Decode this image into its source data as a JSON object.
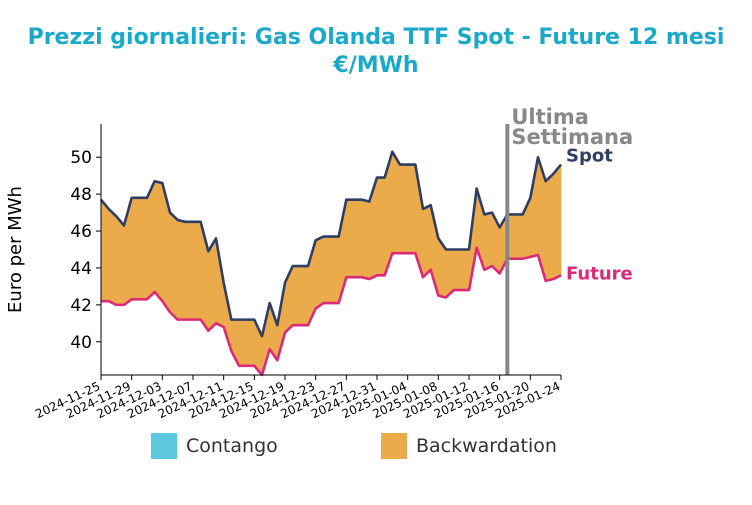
{
  "chart_data": {
    "type": "area",
    "title": "Prezzi giornalieri: Gas Olanda TTF Spot - Future 12 mesi",
    "subtitle": "€/MWh",
    "ylabel": "Euro per MWh",
    "xlabel": "",
    "ylim": [
      38.2,
      51.8
    ],
    "yticks": [
      40,
      42,
      44,
      46,
      48,
      50
    ],
    "xlim": [
      "2024-11-25",
      "2025-01-24"
    ],
    "xticks": [
      "2024-11-25",
      "2024-11-29",
      "2024-12-03",
      "2024-12-07",
      "2024-12-11",
      "2024-12-15",
      "2024-12-19",
      "2024-12-23",
      "2024-12-27",
      "2024-12-31",
      "2025-01-04",
      "2025-01-08",
      "2025-01-12",
      "2025-01-16",
      "2025-01-20",
      "2025-01-24"
    ],
    "grid": false,
    "series": [
      {
        "name": "Spot",
        "color": "#2f3e63",
        "x": [
          "2024-11-25",
          "2024-11-26",
          "2024-11-27",
          "2024-11-28",
          "2024-11-29",
          "2024-11-30",
          "2024-12-01",
          "2024-12-02",
          "2024-12-03",
          "2024-12-04",
          "2024-12-05",
          "2024-12-06",
          "2024-12-07",
          "2024-12-08",
          "2024-12-09",
          "2024-12-10",
          "2024-12-11",
          "2024-12-12",
          "2024-12-13",
          "2024-12-14",
          "2024-12-15",
          "2024-12-16",
          "2024-12-17",
          "2024-12-18",
          "2024-12-19",
          "2024-12-20",
          "2024-12-21",
          "2024-12-22",
          "2024-12-23",
          "2024-12-24",
          "2024-12-25",
          "2024-12-26",
          "2024-12-27",
          "2024-12-28",
          "2024-12-29",
          "2024-12-30",
          "2024-12-31",
          "2025-01-01",
          "2025-01-02",
          "2025-01-03",
          "2025-01-04",
          "2025-01-05",
          "2025-01-06",
          "2025-01-07",
          "2025-01-08",
          "2025-01-09",
          "2025-01-10",
          "2025-01-11",
          "2025-01-12",
          "2025-01-13",
          "2025-01-14",
          "2025-01-15",
          "2025-01-16",
          "2025-01-17",
          "2025-01-18",
          "2025-01-19",
          "2025-01-20",
          "2025-01-21",
          "2025-01-22",
          "2025-01-23",
          "2025-01-24"
        ],
        "values": [
          47.7,
          47.2,
          46.8,
          46.3,
          47.8,
          47.8,
          47.8,
          48.7,
          48.6,
          47.0,
          46.6,
          46.5,
          46.5,
          46.5,
          44.9,
          45.6,
          43.2,
          41.2,
          41.2,
          41.2,
          41.2,
          40.3,
          42.1,
          40.9,
          43.2,
          44.1,
          44.1,
          44.1,
          45.5,
          45.7,
          45.7,
          45.7,
          47.7,
          47.7,
          47.7,
          47.6,
          48.9,
          48.9,
          50.3,
          49.6,
          49.6,
          49.6,
          47.2,
          47.4,
          45.6,
          45.0,
          45.0,
          45.0,
          45.0,
          48.3,
          46.9,
          47.0,
          46.2,
          46.9,
          46.9,
          46.9,
          47.8,
          50.0,
          48.7,
          49.1,
          49.6
        ]
      },
      {
        "name": "Future",
        "color": "#dd2a78",
        "x": [
          "2024-11-25",
          "2024-11-26",
          "2024-11-27",
          "2024-11-28",
          "2024-11-29",
          "2024-11-30",
          "2024-12-01",
          "2024-12-02",
          "2024-12-03",
          "2024-12-04",
          "2024-12-05",
          "2024-12-06",
          "2024-12-07",
          "2024-12-08",
          "2024-12-09",
          "2024-12-10",
          "2024-12-11",
          "2024-12-12",
          "2024-12-13",
          "2024-12-14",
          "2024-12-15",
          "2024-12-16",
          "2024-12-17",
          "2024-12-18",
          "2024-12-19",
          "2024-12-20",
          "2024-12-21",
          "2024-12-22",
          "2024-12-23",
          "2024-12-24",
          "2024-12-25",
          "2024-12-26",
          "2024-12-27",
          "2024-12-28",
          "2024-12-29",
          "2024-12-30",
          "2024-12-31",
          "2025-01-01",
          "2025-01-02",
          "2025-01-03",
          "2025-01-04",
          "2025-01-05",
          "2025-01-06",
          "2025-01-07",
          "2025-01-08",
          "2025-01-09",
          "2025-01-10",
          "2025-01-11",
          "2025-01-12",
          "2025-01-13",
          "2025-01-14",
          "2025-01-15",
          "2025-01-16",
          "2025-01-17",
          "2025-01-18",
          "2025-01-19",
          "2025-01-20",
          "2025-01-21",
          "2025-01-22",
          "2025-01-23",
          "2025-01-24"
        ],
        "values": [
          42.2,
          42.2,
          42.0,
          42.0,
          42.3,
          42.3,
          42.3,
          42.7,
          42.2,
          41.6,
          41.2,
          41.2,
          41.2,
          41.2,
          40.6,
          41.0,
          40.8,
          39.5,
          38.7,
          38.7,
          38.7,
          38.2,
          39.6,
          39.0,
          40.5,
          40.9,
          40.9,
          40.9,
          41.8,
          42.1,
          42.1,
          42.1,
          43.5,
          43.5,
          43.5,
          43.4,
          43.6,
          43.6,
          44.8,
          44.8,
          44.8,
          44.8,
          43.5,
          43.9,
          42.5,
          42.4,
          42.8,
          42.8,
          42.8,
          45.1,
          43.9,
          44.1,
          43.7,
          44.5,
          44.5,
          44.5,
          44.6,
          44.7,
          43.3,
          43.4,
          43.6
        ]
      }
    ],
    "fill_legend": [
      {
        "label": "Contango",
        "color": "#5bc8dd"
      },
      {
        "label": "Backwardation",
        "color": "#ebab4b"
      }
    ],
    "marker": {
      "date": "2025-01-17",
      "label_line1": "Ultima",
      "label_line2": "Settimana",
      "color": "#888888"
    }
  }
}
